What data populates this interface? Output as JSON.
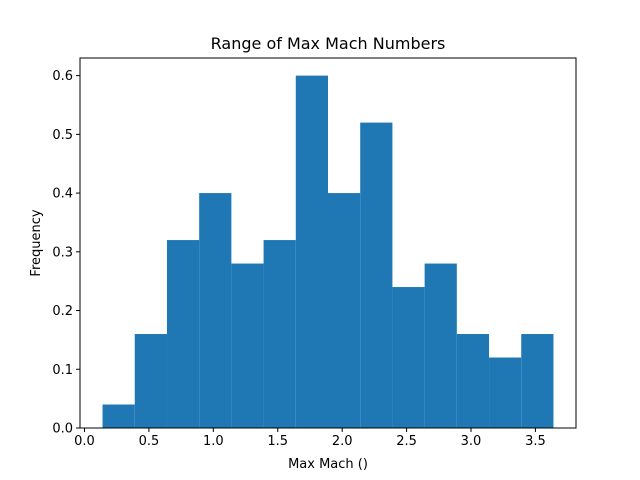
{
  "chart_data": {
    "type": "bar",
    "title": "Range of Max Mach Numbers",
    "xlabel": "Max Mach ()",
    "ylabel": "Frequency",
    "bin_edges": [
      0.14,
      0.39,
      0.64,
      0.89,
      1.14,
      1.39,
      1.64,
      1.89,
      2.14,
      2.39,
      2.64,
      2.89,
      3.14,
      3.39,
      3.64
    ],
    "values": [
      0.04,
      0.16,
      0.32,
      0.4,
      0.28,
      0.32,
      0.6,
      0.4,
      0.52,
      0.24,
      0.28,
      0.16,
      0.12,
      0.16
    ],
    "xlim": [
      -0.035,
      3.815
    ],
    "ylim": [
      0,
      0.63
    ],
    "xticks": [
      0.0,
      0.5,
      1.0,
      1.5,
      2.0,
      2.5,
      3.0,
      3.5
    ],
    "xtick_labels": [
      "0.0",
      "0.5",
      "1.0",
      "1.5",
      "2.0",
      "2.5",
      "3.0",
      "3.5"
    ],
    "yticks": [
      0.0,
      0.1,
      0.2,
      0.3,
      0.4,
      0.5,
      0.6
    ],
    "ytick_labels": [
      "0.0",
      "0.1",
      "0.2",
      "0.3",
      "0.4",
      "0.5",
      "0.6"
    ],
    "bar_color": "#1f77b4",
    "grid": false
  }
}
